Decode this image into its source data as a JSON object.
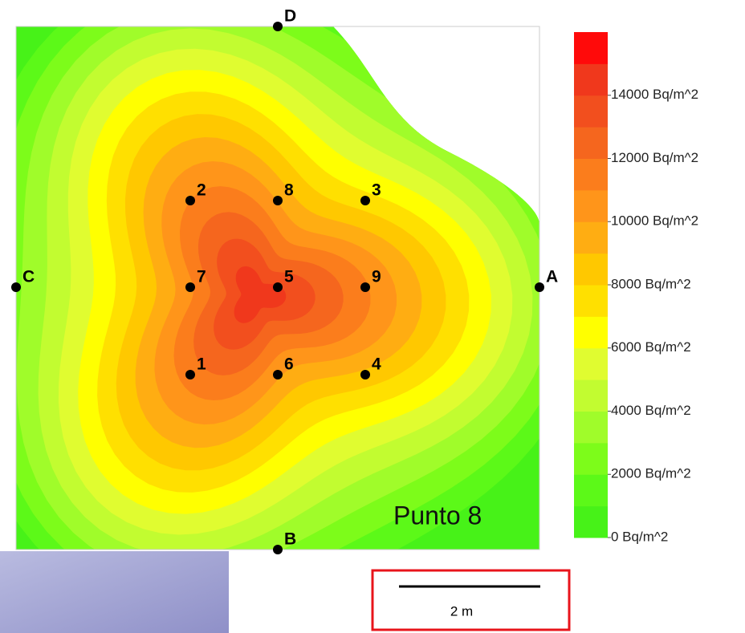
{
  "chart_data": {
    "type": "contour",
    "annotation": "Punto 8",
    "scale_label": "2 m",
    "point_labels": [
      "D",
      "2",
      "8",
      "3",
      "C",
      "7",
      "5",
      "9",
      "A",
      "1",
      "6",
      "4",
      "B"
    ],
    "colorbar": {
      "ylim": [
        0,
        16000
      ],
      "yticks": [
        {
          "value": 0,
          "label": "0  Bq/m^2"
        },
        {
          "value": 2000,
          "label": "2000  Bq/m^2"
        },
        {
          "value": 4000,
          "label": "4000  Bq/m^2"
        },
        {
          "value": 6000,
          "label": "6000  Bq/m^2"
        },
        {
          "value": 8000,
          "label": "8000  Bq/m^2"
        },
        {
          "value": 10000,
          "label": "10000  Bq/m^2"
        },
        {
          "value": 12000,
          "label": "12000  Bq/m^2"
        },
        {
          "value": 14000,
          "label": "14000  Bq/m^2"
        }
      ],
      "colors": [
        "#47f218",
        "#5cf918",
        "#7dfc1a",
        "#a0fc2a",
        "#c2fc30",
        "#e0fc30",
        "#ffff00",
        "#ffe000",
        "#ffc800",
        "#ffad12",
        "#ff951a",
        "#fb7d1c",
        "#f5661e",
        "#f24f1e",
        "#f0381c",
        "#ff0a0a"
      ]
    }
  }
}
